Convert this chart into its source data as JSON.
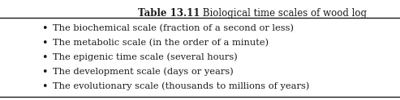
{
  "title_bold": "Table 13.11",
  "title_regular": " Biological time scales of wood log",
  "bullet_items": [
    "The biochemical scale (fraction of a second or less)",
    "The metabolic scale (in the order of a minute)",
    "The epigenic time scale (several hours)",
    "The development scale (days or years)",
    "The evolutionary scale (thousands to millions of years)"
  ],
  "background_color": "#ffffff",
  "text_color": "#1a1a1a",
  "title_fontsize": 8.5,
  "body_fontsize": 8.2,
  "line_color": "#1a1a1a",
  "line_width": 1.0,
  "fig_width": 4.93,
  "fig_height": 1.24,
  "dpi": 100
}
